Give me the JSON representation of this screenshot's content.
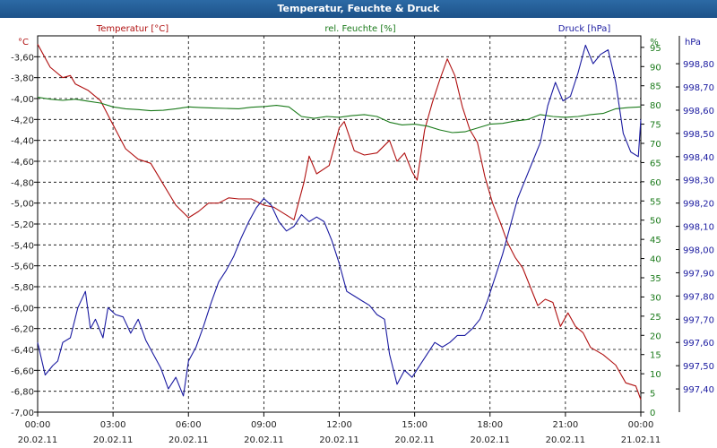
{
  "window": {
    "title": "Temperatur, Feuchte & Druck"
  },
  "chart_data": {
    "type": "line",
    "title": "Temperatur, Feuchte & Druck",
    "x": {
      "range_hours": [
        0,
        24
      ],
      "tick_times": [
        "00:00",
        "03:00",
        "06:00",
        "09:00",
        "12:00",
        "15:00",
        "18:00",
        "21:00",
        "00:00"
      ],
      "tick_dates": [
        "20.02.11",
        "20.02.11",
        "20.02.11",
        "20.02.11",
        "20.02.11",
        "20.02.11",
        "20.02.11",
        "20.02.11",
        "21.02.11"
      ]
    },
    "axes": {
      "temperature": {
        "label": "Temperatur [°C]",
        "unit": "°C",
        "range": [
          -7.0,
          -3.4
        ],
        "ticks": [
          "-3,60",
          "-3,80",
          "-4,00",
          "-4,20",
          "-4,40",
          "-4,60",
          "-4,80",
          "-5,00",
          "-5,20",
          "-5,40",
          "-5,60",
          "-5,80",
          "-6,00",
          "-6,20",
          "-6,40",
          "-6,60",
          "-6,80",
          "-7,00"
        ],
        "color": "#b01010"
      },
      "humidity": {
        "label": "rel. Feuchte [%]",
        "unit": "%",
        "range": [
          0,
          98
        ],
        "ticks": [
          "95",
          "90",
          "85",
          "80",
          "75",
          "70",
          "65",
          "60",
          "55",
          "50",
          "45",
          "40",
          "35",
          "30",
          "25",
          "20",
          "15",
          "10",
          "5",
          "0"
        ],
        "color": "#1a7a1a"
      },
      "pressure": {
        "label": "Druck [hPa]",
        "unit": "hPa",
        "range": [
          997.3,
          998.92
        ],
        "ticks": [
          "998,80",
          "998,70",
          "998,60",
          "998,50",
          "998,40",
          "998,30",
          "998,20",
          "998,10",
          "998,00",
          "997,90",
          "997,80",
          "997,70",
          "997,60",
          "997,50",
          "997,40"
        ],
        "color": "#1a1aa0"
      }
    },
    "series": [
      {
        "name": "Temperatur",
        "axis": "temperature",
        "color": "#b01010",
        "points": [
          [
            0,
            -3.48
          ],
          [
            0.5,
            -3.7
          ],
          [
            1,
            -3.8
          ],
          [
            1.3,
            -3.78
          ],
          [
            1.5,
            -3.86
          ],
          [
            2,
            -3.92
          ],
          [
            2.5,
            -4.02
          ],
          [
            3,
            -4.25
          ],
          [
            3.5,
            -4.48
          ],
          [
            4,
            -4.58
          ],
          [
            4.5,
            -4.62
          ],
          [
            5,
            -4.82
          ],
          [
            5.5,
            -5.02
          ],
          [
            6,
            -5.14
          ],
          [
            6.4,
            -5.08
          ],
          [
            6.8,
            -5.0
          ],
          [
            7.2,
            -5.0
          ],
          [
            7.6,
            -4.95
          ],
          [
            8,
            -4.96
          ],
          [
            8.5,
            -4.96
          ],
          [
            9,
            -5.02
          ],
          [
            9.4,
            -5.04
          ],
          [
            9.8,
            -5.1
          ],
          [
            10.2,
            -5.16
          ],
          [
            10.6,
            -4.8
          ],
          [
            10.8,
            -4.55
          ],
          [
            11.1,
            -4.72
          ],
          [
            11.6,
            -4.64
          ],
          [
            12,
            -4.28
          ],
          [
            12.2,
            -4.22
          ],
          [
            12.6,
            -4.5
          ],
          [
            13,
            -4.54
          ],
          [
            13.5,
            -4.52
          ],
          [
            14,
            -4.4
          ],
          [
            14.3,
            -4.6
          ],
          [
            14.6,
            -4.52
          ],
          [
            14.9,
            -4.7
          ],
          [
            15.1,
            -4.78
          ],
          [
            15.4,
            -4.3
          ],
          [
            15.7,
            -4.04
          ],
          [
            16,
            -3.82
          ],
          [
            16.3,
            -3.62
          ],
          [
            16.6,
            -3.78
          ],
          [
            16.9,
            -4.08
          ],
          [
            17.2,
            -4.3
          ],
          [
            17.5,
            -4.42
          ],
          [
            17.8,
            -4.75
          ],
          [
            18.1,
            -5.0
          ],
          [
            18.4,
            -5.18
          ],
          [
            18.7,
            -5.38
          ],
          [
            19,
            -5.52
          ],
          [
            19.3,
            -5.62
          ],
          [
            19.6,
            -5.8
          ],
          [
            19.9,
            -5.98
          ],
          [
            20.2,
            -5.92
          ],
          [
            20.5,
            -5.95
          ],
          [
            20.8,
            -6.18
          ],
          [
            21.1,
            -6.05
          ],
          [
            21.4,
            -6.18
          ],
          [
            21.7,
            -6.24
          ],
          [
            22,
            -6.38
          ],
          [
            22.5,
            -6.45
          ],
          [
            23,
            -6.55
          ],
          [
            23.4,
            -6.72
          ],
          [
            23.8,
            -6.75
          ],
          [
            24,
            -6.88
          ]
        ]
      },
      {
        "name": "rel. Feuchte",
        "axis": "humidity",
        "color": "#1a7a1a",
        "points": [
          [
            0,
            82
          ],
          [
            0.5,
            81.5
          ],
          [
            1,
            81.2
          ],
          [
            1.5,
            81.5
          ],
          [
            2,
            81
          ],
          [
            2.5,
            80.5
          ],
          [
            3,
            79.5
          ],
          [
            3.5,
            79
          ],
          [
            4,
            78.8
          ],
          [
            4.5,
            78.5
          ],
          [
            5,
            78.6
          ],
          [
            5.5,
            79
          ],
          [
            6,
            79.5
          ],
          [
            6.5,
            79.3
          ],
          [
            7,
            79.2
          ],
          [
            7.5,
            79.1
          ],
          [
            8,
            79
          ],
          [
            8.5,
            79.4
          ],
          [
            9,
            79.6
          ],
          [
            9.5,
            79.9
          ],
          [
            10,
            79.5
          ],
          [
            10.5,
            77
          ],
          [
            11,
            76.5
          ],
          [
            11.5,
            77
          ],
          [
            12,
            76.8
          ],
          [
            12.5,
            77.2
          ],
          [
            13,
            77.5
          ],
          [
            13.5,
            77
          ],
          [
            14,
            75.5
          ],
          [
            14.5,
            74.8
          ],
          [
            15,
            75
          ],
          [
            15.5,
            74.5
          ],
          [
            16,
            73.5
          ],
          [
            16.5,
            72.8
          ],
          [
            17,
            73
          ],
          [
            17.5,
            74
          ],
          [
            18,
            75
          ],
          [
            18.5,
            75.2
          ],
          [
            19,
            75.8
          ],
          [
            19.5,
            76.2
          ],
          [
            20,
            77.5
          ],
          [
            20.5,
            77
          ],
          [
            21,
            76.8
          ],
          [
            21.5,
            77
          ],
          [
            22,
            77.5
          ],
          [
            22.5,
            77.8
          ],
          [
            23,
            79
          ],
          [
            23.5,
            79.3
          ],
          [
            24,
            79.5
          ]
        ]
      },
      {
        "name": "Druck",
        "axis": "pressure",
        "color": "#1a1aa0",
        "points": [
          [
            0,
            997.6
          ],
          [
            0.3,
            997.46
          ],
          [
            0.6,
            997.5
          ],
          [
            0.8,
            997.52
          ],
          [
            1.0,
            997.6
          ],
          [
            1.3,
            997.62
          ],
          [
            1.6,
            997.75
          ],
          [
            1.9,
            997.82
          ],
          [
            2.1,
            997.66
          ],
          [
            2.3,
            997.7
          ],
          [
            2.6,
            997.62
          ],
          [
            2.8,
            997.75
          ],
          [
            3.1,
            997.72
          ],
          [
            3.4,
            997.71
          ],
          [
            3.7,
            997.64
          ],
          [
            4.0,
            997.7
          ],
          [
            4.3,
            997.61
          ],
          [
            4.6,
            997.55
          ],
          [
            4.9,
            997.49
          ],
          [
            5.2,
            997.4
          ],
          [
            5.5,
            997.45
          ],
          [
            5.8,
            997.37
          ],
          [
            6.0,
            997.52
          ],
          [
            6.3,
            997.58
          ],
          [
            6.6,
            997.67
          ],
          [
            6.9,
            997.77
          ],
          [
            7.2,
            997.86
          ],
          [
            7.5,
            997.91
          ],
          [
            7.8,
            997.97
          ],
          [
            8.1,
            998.05
          ],
          [
            8.4,
            998.12
          ],
          [
            8.7,
            998.18
          ],
          [
            9.0,
            998.22
          ],
          [
            9.3,
            998.19
          ],
          [
            9.6,
            998.12
          ],
          [
            9.9,
            998.08
          ],
          [
            10.2,
            998.1
          ],
          [
            10.5,
            998.15
          ],
          [
            10.8,
            998.12
          ],
          [
            11.1,
            998.14
          ],
          [
            11.4,
            998.12
          ],
          [
            11.7,
            998.04
          ],
          [
            12.0,
            997.94
          ],
          [
            12.3,
            997.82
          ],
          [
            12.6,
            997.8
          ],
          [
            12.9,
            997.78
          ],
          [
            13.2,
            997.76
          ],
          [
            13.5,
            997.72
          ],
          [
            13.8,
            997.7
          ],
          [
            14.0,
            997.55
          ],
          [
            14.3,
            997.42
          ],
          [
            14.6,
            997.48
          ],
          [
            14.9,
            997.45
          ],
          [
            15.2,
            997.5
          ],
          [
            15.5,
            997.55
          ],
          [
            15.8,
            997.6
          ],
          [
            16.1,
            997.58
          ],
          [
            16.4,
            997.6
          ],
          [
            16.7,
            997.63
          ],
          [
            17.0,
            997.63
          ],
          [
            17.3,
            997.66
          ],
          [
            17.6,
            997.7
          ],
          [
            17.9,
            997.78
          ],
          [
            18.2,
            997.88
          ],
          [
            18.5,
            997.98
          ],
          [
            18.8,
            998.1
          ],
          [
            19.1,
            998.22
          ],
          [
            19.4,
            998.3
          ],
          [
            19.7,
            998.38
          ],
          [
            20.0,
            998.46
          ],
          [
            20.3,
            998.62
          ],
          [
            20.6,
            998.72
          ],
          [
            20.9,
            998.64
          ],
          [
            21.2,
            998.66
          ],
          [
            21.5,
            998.76
          ],
          [
            21.8,
            998.88
          ],
          [
            22.1,
            998.8
          ],
          [
            22.4,
            998.84
          ],
          [
            22.7,
            998.86
          ],
          [
            23.0,
            998.72
          ],
          [
            23.3,
            998.5
          ],
          [
            23.6,
            998.42
          ],
          [
            23.9,
            998.4
          ],
          [
            24,
            998.56
          ]
        ]
      }
    ]
  }
}
